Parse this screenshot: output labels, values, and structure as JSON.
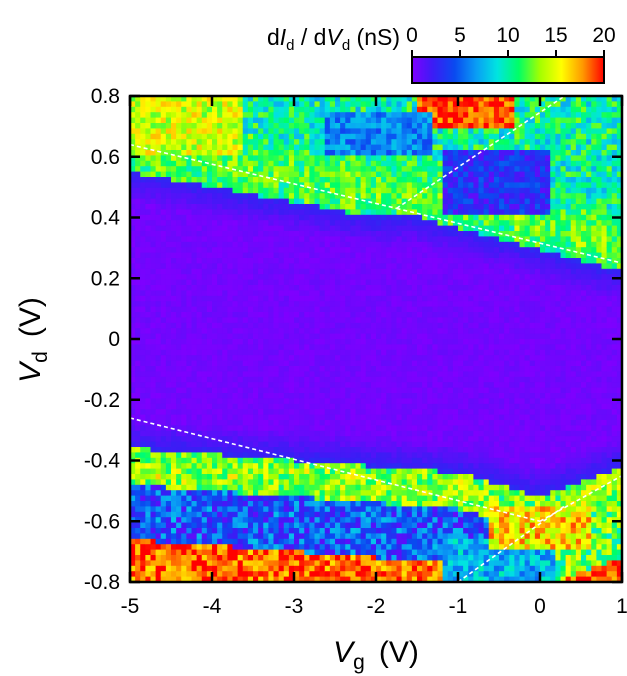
{
  "chart_data": {
    "type": "heatmap",
    "title": "",
    "xlabel": {
      "symbol": "V",
      "subscript": "g",
      "unit": "(V)"
    },
    "ylabel": {
      "symbol": "V",
      "subscript": "d",
      "unit": "(V)"
    },
    "xlim": [
      -5,
      1
    ],
    "ylim": [
      -0.8,
      0.8
    ],
    "x_ticks": [
      -5,
      -4,
      -3,
      -2,
      -1,
      0,
      1
    ],
    "x_tick_labels": [
      "-5",
      "-4",
      "-3",
      "-2",
      "-1",
      "0",
      "1"
    ],
    "y_ticks": [
      0.8,
      0.6,
      0.4,
      0.2,
      0,
      -0.2,
      -0.4,
      -0.6,
      -0.8
    ],
    "y_tick_labels": [
      "0.8",
      "0.6",
      "0.4",
      "0.2",
      "0",
      "-0.2",
      "-0.4",
      "-0.6",
      "-0.8"
    ],
    "colorbar": {
      "label": {
        "prefix": "d",
        "num": "I",
        "num_sub": "d",
        "mid": " / d",
        "den": "V",
        "den_sub": "d",
        "unit": " (nS)"
      },
      "min": 0,
      "max": 20,
      "ticks": [
        0,
        5,
        10,
        15,
        20
      ],
      "tick_labels": [
        "0",
        "5",
        "10",
        "15",
        "20"
      ],
      "colormap": [
        "#7f00ff",
        "#3a1df5",
        "#0a4af0",
        "#0a9cf5",
        "#00e5e0",
        "#00ff66",
        "#a4ff00",
        "#ffff00",
        "#ff9900",
        "#ff0000"
      ]
    },
    "guide_lines": [
      {
        "name": "upper-left-edge",
        "x": [
          -5,
          -1.75
        ],
        "y": [
          0.64,
          0.43
        ],
        "color": "#ffffff",
        "dashed": true
      },
      {
        "name": "upper-right-edge",
        "x": [
          -1.75,
          1
        ],
        "y": [
          0.43,
          0.25
        ],
        "color": "#ffffff",
        "dashed": true
      },
      {
        "name": "upper-rising-line",
        "x": [
          -1.75,
          0.3
        ],
        "y": [
          0.43,
          0.8
        ],
        "color": "#ffffff",
        "dashed": true
      },
      {
        "name": "lower-left-edge",
        "x": [
          -5,
          0
        ],
        "y": [
          -0.26,
          -0.6
        ],
        "color": "#ffffff",
        "dashed": true
      },
      {
        "name": "lower-right-edge",
        "x": [
          0,
          1
        ],
        "y": [
          -0.6,
          -0.45
        ],
        "color": "#ffffff",
        "dashed": true
      },
      {
        "name": "lower-falling-line",
        "x": [
          -1,
          0.3
        ],
        "y": [
          -0.8,
          -0.55
        ],
        "color": "#ffffff",
        "dashed": true
      }
    ],
    "description_values": {
      "gap_conductance_nS": 0,
      "edge_conductance_nS": [
        8,
        12
      ],
      "max_conductance_nS": 20
    }
  }
}
